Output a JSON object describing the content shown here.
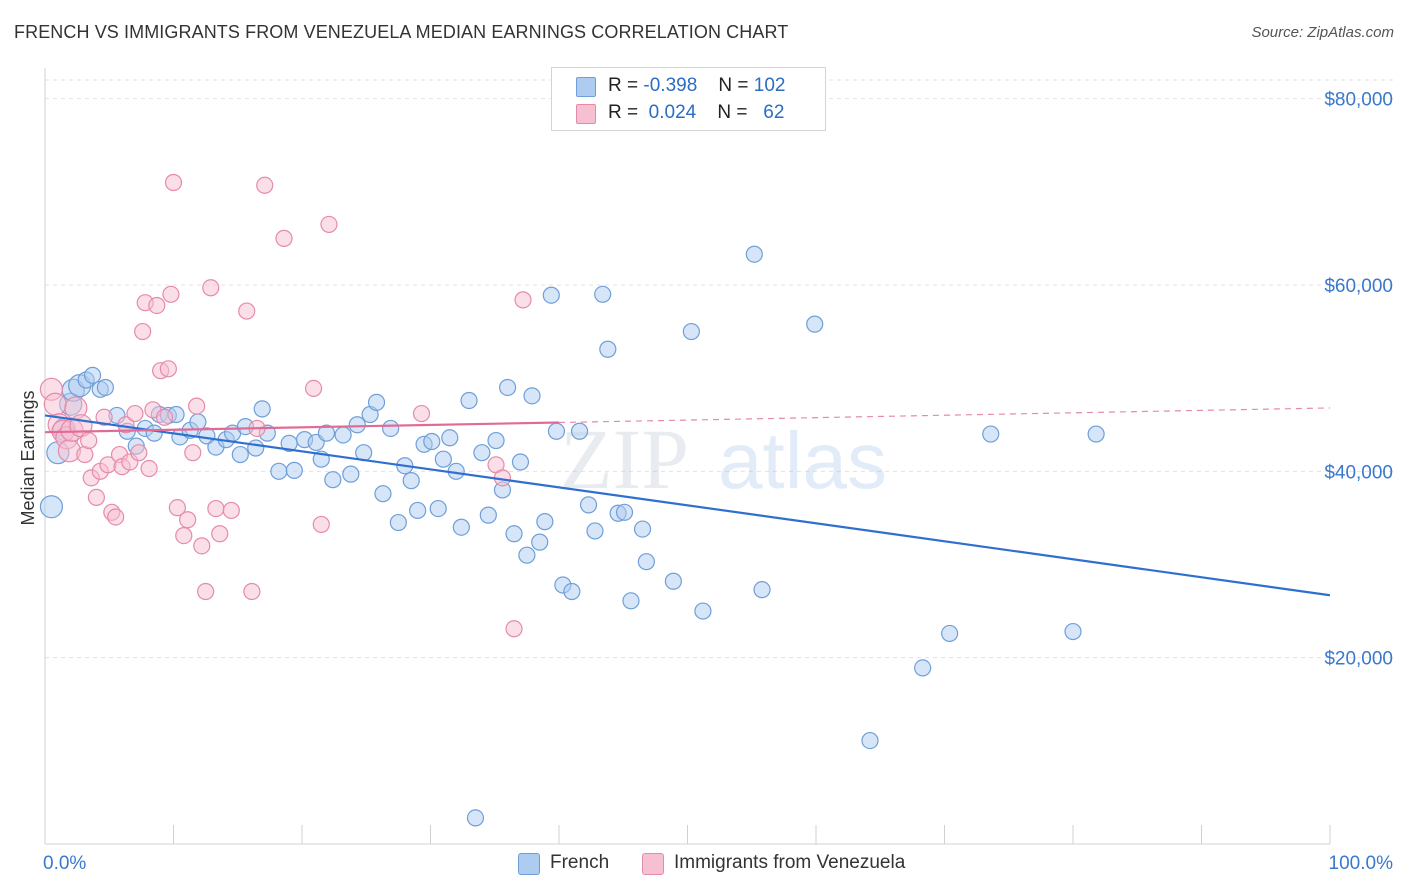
{
  "title": "FRENCH VS IMMIGRANTS FROM VENEZUELA MEDIAN EARNINGS CORRELATION CHART",
  "source": "Source: ZipAtlas.com",
  "watermark": {
    "zip": "ZIP",
    "atlas": "atlas"
  },
  "legend": {
    "rows": [
      {
        "r_label": "R =",
        "r_value": "-0.398",
        "n_label": "N =",
        "n_value": "102",
        "color": "#aecbf0",
        "border": "#6f9fd8"
      },
      {
        "r_label": "R =",
        "r_value": "0.024",
        "n_label": "N =",
        "n_value": "62",
        "color": "#f7bfd2",
        "border": "#e68aab"
      }
    ]
  },
  "bottom_legend": [
    {
      "name": "French",
      "color": "#aecbf0",
      "border": "#6f9fd8"
    },
    {
      "name": "Immigrants from Venezuela",
      "color": "#f7bfd2",
      "border": "#e68aab"
    }
  ],
  "chart_data": {
    "type": "scatter",
    "ylabel": "Median Earnings",
    "xlim": [
      0,
      100
    ],
    "ylim": [
      0,
      82000
    ],
    "x_tick_labels": {
      "left": "0.0%",
      "right": "100.0%"
    },
    "y_ticks": [
      {
        "value": 20000,
        "label": "$20,000"
      },
      {
        "value": 40000,
        "label": "$40,000"
      },
      {
        "value": 60000,
        "label": "$60,000"
      },
      {
        "value": 80000,
        "label": "$80,000"
      }
    ],
    "grid": true,
    "series": [
      {
        "name": "French",
        "color": "#6f9fd8",
        "fill": "#aecbf0",
        "line_color": "#2f6fd0",
        "trend": {
          "x0": 0,
          "y0": 46000,
          "x1": 100,
          "y1": 26700,
          "dashed_from": null
        },
        "points": [
          [
            0.5,
            36200
          ],
          [
            1,
            42000
          ],
          [
            1.5,
            44500
          ],
          [
            2,
            47200
          ],
          [
            2.2,
            48700
          ],
          [
            2.7,
            49200
          ],
          [
            3.2,
            49800
          ],
          [
            3.7,
            50300
          ],
          [
            4.3,
            48800
          ],
          [
            4.7,
            49000
          ],
          [
            5.6,
            46000
          ],
          [
            6.4,
            44300
          ],
          [
            7.1,
            42700
          ],
          [
            7.8,
            44600
          ],
          [
            8.5,
            44100
          ],
          [
            8.9,
            46100
          ],
          [
            9.6,
            46000
          ],
          [
            10.2,
            46100
          ],
          [
            10.5,
            43700
          ],
          [
            11.3,
            44400
          ],
          [
            11.9,
            45300
          ],
          [
            12.6,
            43800
          ],
          [
            13.3,
            42600
          ],
          [
            14.1,
            43400
          ],
          [
            14.6,
            44100
          ],
          [
            15.2,
            41800
          ],
          [
            15.6,
            44800
          ],
          [
            16.4,
            42500
          ],
          [
            16.9,
            46700
          ],
          [
            17.3,
            44100
          ],
          [
            18.2,
            40000
          ],
          [
            19.0,
            43000
          ],
          [
            19.4,
            40100
          ],
          [
            20.2,
            43400
          ],
          [
            21.1,
            43100
          ],
          [
            21.5,
            41300
          ],
          [
            21.9,
            44100
          ],
          [
            22.4,
            39100
          ],
          [
            23.2,
            43900
          ],
          [
            23.8,
            39700
          ],
          [
            24.3,
            45000
          ],
          [
            24.8,
            42000
          ],
          [
            25.3,
            46100
          ],
          [
            25.8,
            47400
          ],
          [
            26.3,
            37600
          ],
          [
            26.9,
            44600
          ],
          [
            27.5,
            34500
          ],
          [
            28.0,
            40600
          ],
          [
            28.5,
            39000
          ],
          [
            29.0,
            35800
          ],
          [
            29.5,
            42900
          ],
          [
            30.1,
            43200
          ],
          [
            30.6,
            36000
          ],
          [
            31.0,
            41300
          ],
          [
            31.5,
            43600
          ],
          [
            32.0,
            40000
          ],
          [
            32.4,
            34000
          ],
          [
            33.0,
            47600
          ],
          [
            33.5,
            2800
          ],
          [
            34.0,
            42000
          ],
          [
            34.5,
            35300
          ],
          [
            35.1,
            43300
          ],
          [
            35.6,
            38000
          ],
          [
            36.0,
            49000
          ],
          [
            36.5,
            33300
          ],
          [
            37.0,
            41000
          ],
          [
            37.5,
            31000
          ],
          [
            37.9,
            48100
          ],
          [
            38.5,
            32400
          ],
          [
            38.9,
            34600
          ],
          [
            39.4,
            58900
          ],
          [
            39.8,
            44300
          ],
          [
            40.3,
            27800
          ],
          [
            41.0,
            27100
          ],
          [
            41.6,
            44300
          ],
          [
            42.3,
            36400
          ],
          [
            42.8,
            33600
          ],
          [
            43.4,
            59000
          ],
          [
            43.8,
            53100
          ],
          [
            44.6,
            35500
          ],
          [
            45.1,
            35600
          ],
          [
            45.6,
            26100
          ],
          [
            46.5,
            33800
          ],
          [
            46.8,
            30300
          ],
          [
            48.9,
            28200
          ],
          [
            50.3,
            55000
          ],
          [
            51.2,
            25000
          ],
          [
            55.2,
            63300
          ],
          [
            55.8,
            27300
          ],
          [
            59.9,
            55800
          ],
          [
            64.2,
            11100
          ],
          [
            68.3,
            18900
          ],
          [
            70.4,
            22600
          ],
          [
            73.6,
            44000
          ],
          [
            80.0,
            22800
          ],
          [
            81.8,
            44000
          ]
        ]
      },
      {
        "name": "Immigrants from Venezuela",
        "color": "#e68aab",
        "fill": "#f7bfd2",
        "line_color": "#e06c95",
        "trend": {
          "x0": 0,
          "y0": 44200,
          "x1": 100,
          "y1": 46800,
          "dashed_from": 40
        },
        "points": [
          [
            0.5,
            48800
          ],
          [
            0.8,
            47200
          ],
          [
            1.1,
            45000
          ],
          [
            1.4,
            44300
          ],
          [
            1.7,
            43600
          ],
          [
            1.9,
            42200
          ],
          [
            2.1,
            44400
          ],
          [
            2.4,
            46800
          ],
          [
            2.8,
            44900
          ],
          [
            3.1,
            41800
          ],
          [
            3.4,
            43300
          ],
          [
            3.6,
            39300
          ],
          [
            4.0,
            37200
          ],
          [
            4.3,
            40000
          ],
          [
            4.6,
            45800
          ],
          [
            4.9,
            40700
          ],
          [
            5.2,
            35600
          ],
          [
            5.5,
            35100
          ],
          [
            5.8,
            41800
          ],
          [
            6.0,
            40500
          ],
          [
            6.3,
            45000
          ],
          [
            6.6,
            41000
          ],
          [
            7.0,
            46200
          ],
          [
            7.3,
            42000
          ],
          [
            7.6,
            55000
          ],
          [
            7.8,
            58100
          ],
          [
            8.1,
            40300
          ],
          [
            8.4,
            46600
          ],
          [
            8.7,
            57800
          ],
          [
            9.0,
            50800
          ],
          [
            9.3,
            45800
          ],
          [
            9.6,
            51000
          ],
          [
            9.8,
            59000
          ],
          [
            10.0,
            71000
          ],
          [
            10.3,
            36100
          ],
          [
            10.8,
            33100
          ],
          [
            11.1,
            34800
          ],
          [
            11.5,
            42000
          ],
          [
            11.8,
            47000
          ],
          [
            12.2,
            32000
          ],
          [
            12.5,
            27100
          ],
          [
            12.9,
            59700
          ],
          [
            13.3,
            36000
          ],
          [
            13.6,
            33300
          ],
          [
            14.5,
            35800
          ],
          [
            15.7,
            57200
          ],
          [
            16.1,
            27100
          ],
          [
            16.5,
            44600
          ],
          [
            17.1,
            70700
          ],
          [
            18.6,
            65000
          ],
          [
            20.9,
            48900
          ],
          [
            21.5,
            34300
          ],
          [
            22.1,
            66500
          ],
          [
            29.3,
            46200
          ],
          [
            35.1,
            40700
          ],
          [
            35.6,
            39300
          ],
          [
            36.5,
            23100
          ],
          [
            37.2,
            58400
          ]
        ]
      }
    ]
  }
}
